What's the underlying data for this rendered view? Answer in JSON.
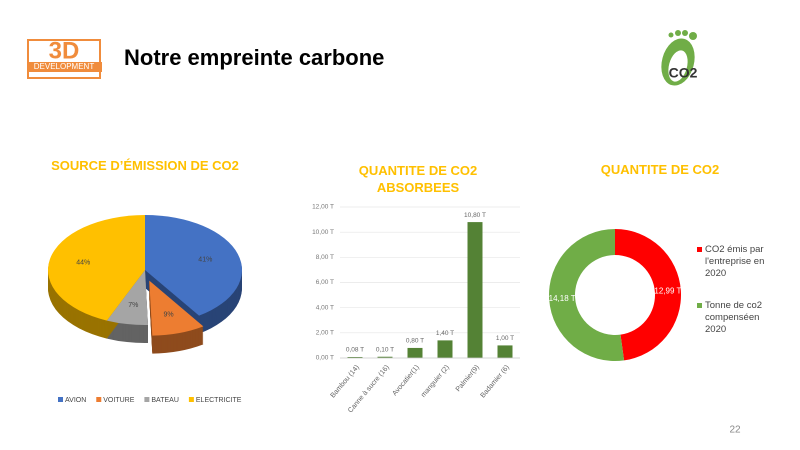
{
  "header": {
    "logo_mark": "3D",
    "logo_text": "DEVELOPMENT",
    "title": "Notre empreinte carbone",
    "icon_label": "CO2"
  },
  "page_number": "22",
  "chart_data": [
    {
      "type": "pie",
      "title": "SOURCE D’ÉMISSION DE CO2",
      "categories": [
        "AVION",
        "VOITURE",
        "BATEAU",
        "ELECTRICITE"
      ],
      "values": [
        41,
        9,
        7,
        44
      ],
      "value_labels": [
        "41%",
        "9%",
        "7%",
        "44%"
      ],
      "colors": [
        "#4472c4",
        "#ed7d31",
        "#a5a5a5",
        "#ffc000"
      ],
      "legend": "bottom"
    },
    {
      "type": "bar",
      "title": "QUANTITE DE CO2 ABSORBEES",
      "categories": [
        "Bambou (14)",
        "Canne à sucre (16)",
        "Avocatier(1)",
        "manguier (2)",
        "Palmier(9)",
        "Badamier (6)"
      ],
      "values": [
        0.08,
        0.1,
        0.8,
        1.4,
        10.8,
        1.0
      ],
      "value_labels": [
        "0,08 T",
        "0,10 T",
        "0,80 T",
        "1,40 T",
        "10,80 T",
        "1,00 T"
      ],
      "color": "#548235",
      "ylim": [
        0,
        12
      ],
      "yticks": [
        {
          "value": 0,
          "label": "0,00 T"
        },
        {
          "value": 2,
          "label": "2,00 T"
        },
        {
          "value": 4,
          "label": "4,00 T"
        },
        {
          "value": 6,
          "label": "6,00 T"
        },
        {
          "value": 8,
          "label": "8,00 T"
        },
        {
          "value": 10,
          "label": "10,00 T"
        },
        {
          "value": 12,
          "label": "12,00 T"
        }
      ],
      "grid": true
    },
    {
      "type": "donut",
      "title": "QUANTITE DE CO2",
      "categories": [
        "CO2 émis par l'entreprise en 2020",
        "Tonne de co2 compenséen 2020"
      ],
      "values": [
        12.99,
        14.18
      ],
      "value_labels": [
        "12,99 T",
        "14,18 T"
      ],
      "colors": [
        "#ff0000",
        "#70ad47"
      ],
      "legend": "right"
    }
  ]
}
